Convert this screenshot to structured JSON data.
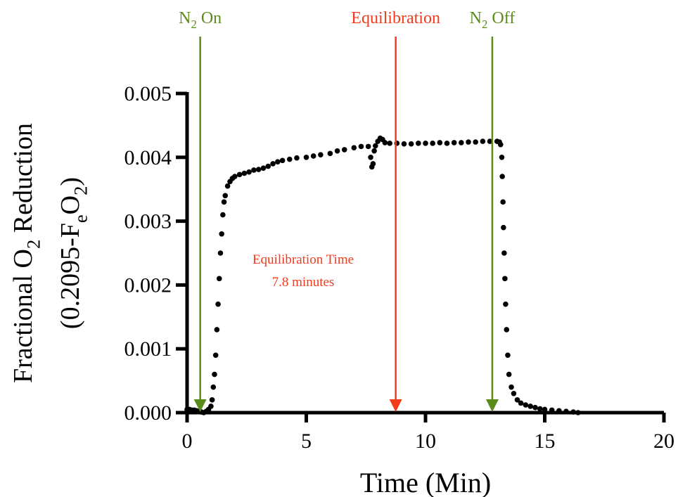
{
  "chart_data": {
    "type": "scatter",
    "xlabel": "Time (Min)",
    "ylabel": [
      [
        "Fractional O",
        "2",
        " Reduction"
      ],
      [
        "(0.2095-F",
        "e",
        "O",
        "2",
        ")"
      ]
    ],
    "xlim": [
      0,
      20
    ],
    "ylim": [
      0,
      0.005
    ],
    "xticks": [
      0,
      5,
      10,
      15,
      20
    ],
    "yticks": [
      {
        "value": 0,
        "label": "0.000"
      },
      0.001,
      0.002,
      0.003,
      0.004,
      0.005
    ],
    "annotations": [
      {
        "parts": [
          "N",
          "2",
          " On"
        ],
        "x": 0.55,
        "color": "#5b8c1a"
      },
      {
        "parts": [
          "Equilibration"
        ],
        "x": 8.75,
        "color": "#f23a1d"
      },
      {
        "parts": [
          "N",
          "2",
          " Off"
        ],
        "x": 12.8,
        "color": "#5b8c1a"
      }
    ],
    "note": {
      "lines": [
        "Equilibration Time",
        "7.8 minutes"
      ],
      "color": "#f23a1d"
    },
    "series": [
      {
        "color": "#000000",
        "x": [
          0.0,
          0.1,
          0.2,
          0.3,
          0.4,
          0.5,
          0.6,
          0.7,
          0.8,
          0.9,
          1.0,
          1.05,
          1.1,
          1.15,
          1.2,
          1.25,
          1.3,
          1.35,
          1.4,
          1.45,
          1.5,
          1.55,
          1.6,
          1.7,
          1.8,
          1.9,
          2.0,
          2.2,
          2.4,
          2.6,
          2.8,
          3.0,
          3.2,
          3.4,
          3.6,
          3.8,
          4.0,
          4.3,
          4.6,
          5.0,
          5.3,
          5.6,
          6.0,
          6.3,
          6.6,
          7.0,
          7.3,
          7.6,
          7.7,
          7.75,
          7.8,
          7.85,
          7.9,
          8.0,
          8.1,
          8.2,
          8.3,
          8.5,
          8.8,
          9.1,
          9.4,
          9.7,
          10.0,
          10.3,
          10.6,
          10.9,
          11.2,
          11.5,
          11.8,
          12.1,
          12.4,
          12.7,
          13.0,
          13.1,
          13.15,
          13.2,
          13.22,
          13.25,
          13.27,
          13.3,
          13.33,
          13.36,
          13.4,
          13.45,
          13.5,
          13.6,
          13.7,
          13.85,
          14.0,
          14.2,
          14.4,
          14.6,
          14.8,
          15.0,
          15.3,
          15.6,
          15.9,
          16.2,
          16.4
        ],
        "values": [
          5e-05,
          5e-05,
          4e-05,
          4e-05,
          3e-05,
          2e-05,
          1e-05,
          0,
          2e-05,
          5e-05,
          0.0001,
          0.0002,
          0.0004,
          0.0006,
          0.0009,
          0.0013,
          0.0017,
          0.0021,
          0.0025,
          0.0028,
          0.0031,
          0.0033,
          0.0034,
          0.00355,
          0.00362,
          0.00367,
          0.0037,
          0.00373,
          0.00375,
          0.00377,
          0.0038,
          0.00381,
          0.00383,
          0.00386,
          0.0039,
          0.00393,
          0.00395,
          0.00397,
          0.00399,
          0.004,
          0.00402,
          0.00404,
          0.00406,
          0.0041,
          0.00412,
          0.00415,
          0.00417,
          0.00417,
          0.004,
          0.00385,
          0.0039,
          0.0041,
          0.00418,
          0.00425,
          0.0043,
          0.00428,
          0.00423,
          0.00422,
          0.00422,
          0.00421,
          0.00421,
          0.00422,
          0.00422,
          0.00422,
          0.00423,
          0.00422,
          0.00423,
          0.00423,
          0.00424,
          0.00424,
          0.00425,
          0.00425,
          0.00425,
          0.00424,
          0.0042,
          0.004,
          0.0037,
          0.0033,
          0.0029,
          0.0025,
          0.0021,
          0.0017,
          0.0013,
          0.0009,
          0.0006,
          0.0004,
          0.0003,
          0.0002,
          0.00015,
          0.00012,
          0.0001,
          8e-05,
          6e-05,
          5e-05,
          4e-05,
          3e-05,
          2e-05,
          1e-05,
          0
        ]
      }
    ]
  }
}
